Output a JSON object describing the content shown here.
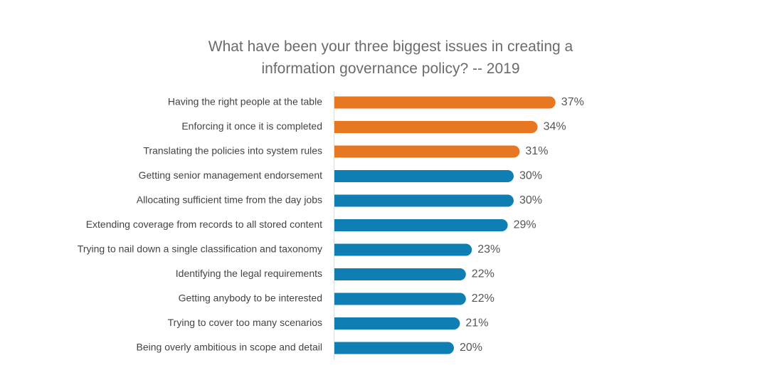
{
  "chart_data": {
    "type": "hbar",
    "title": "What have been your three biggest issues in creating a information governance policy? -- 2019",
    "categories": [
      "Having the right people at the table",
      "Enforcing it once it is completed",
      "Translating the policies into system rules",
      "Getting senior management endorsement",
      "Allocating sufficient time from the day jobs",
      "Extending coverage from records to all stored content",
      "Trying to nail down a single classification and taxonomy",
      "Identifying the legal requirements",
      "Getting anybody to be interested",
      "Trying to cover too many scenarios",
      "Being overly ambitious in scope and detail"
    ],
    "values": [
      37,
      34,
      31,
      30,
      30,
      29,
      23,
      22,
      22,
      21,
      20
    ],
    "value_labels": [
      "37%",
      "34%",
      "31%",
      "30%",
      "30%",
      "29%",
      "23%",
      "22%",
      "22%",
      "21%",
      "20%"
    ],
    "colors": [
      "#e87722",
      "#e87722",
      "#e87722",
      "#0f7fb3",
      "#0f7fb3",
      "#0f7fb3",
      "#0f7fb3",
      "#0f7fb3",
      "#0f7fb3",
      "#0f7fb3",
      "#0f7fb3"
    ]
  }
}
